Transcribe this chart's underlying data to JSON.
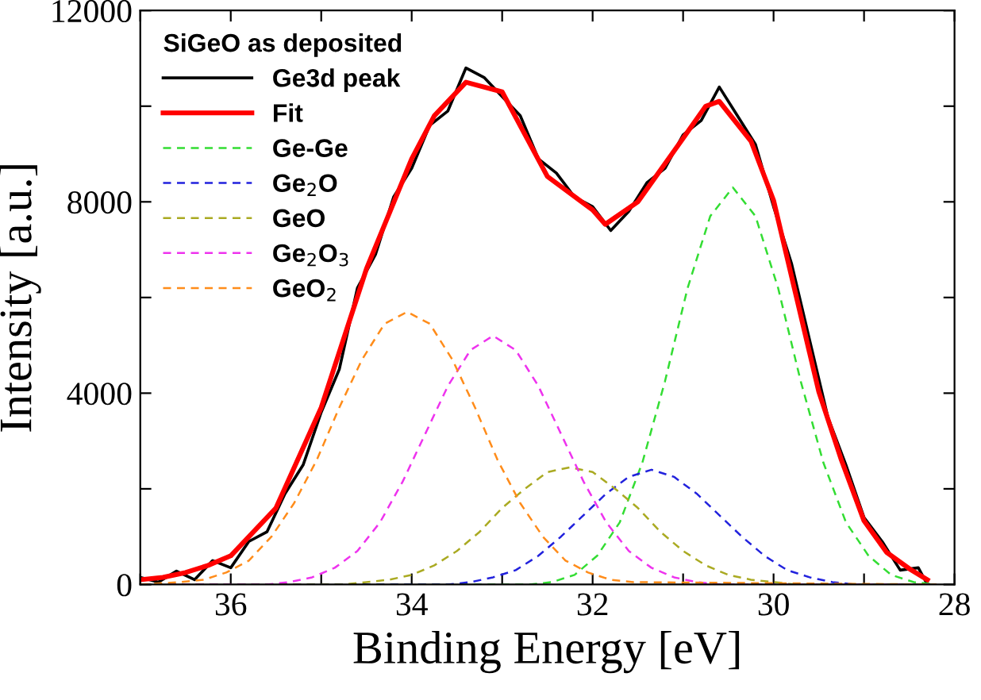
{
  "chart_data": {
    "type": "line",
    "xlabel": "Binding Energy [eV]",
    "ylabel": "Intensity [a.u.]",
    "legend_title": "SiGeO as deposited",
    "legend": "top left",
    "grid": false,
    "marker": "none",
    "xlim": [
      37,
      28
    ],
    "xticks": [
      {
        "value": 37,
        "label": null
      },
      36,
      {
        "value": 35,
        "label": null
      },
      34,
      {
        "value": 33,
        "label": null
      },
      32,
      {
        "value": 31,
        "label": null
      },
      30,
      {
        "value": 29,
        "label": null
      },
      28
    ],
    "ylim": [
      0,
      12000
    ],
    "yticks": [
      0,
      {
        "value": 2000,
        "label": null
      },
      4000,
      {
        "value": 6000,
        "label": null
      },
      8000,
      {
        "value": 10000,
        "label": null
      },
      12000
    ],
    "series": [
      {
        "name": "Ge3d peak",
        "color": "#000000",
        "line_style": "solid",
        "x": [
          37.0,
          36.8,
          36.6,
          36.4,
          36.2,
          36.0,
          35.8,
          35.6,
          35.4,
          35.2,
          35.0,
          34.8,
          34.6,
          34.4,
          34.2,
          34.0,
          33.8,
          33.6,
          33.4,
          33.2,
          33.0,
          32.8,
          32.6,
          32.4,
          32.2,
          32.0,
          31.8,
          31.6,
          31.4,
          31.2,
          31.0,
          30.8,
          30.6,
          30.4,
          30.2,
          30.0,
          29.8,
          29.6,
          29.4,
          29.2,
          29.0,
          28.8,
          28.6,
          28.4,
          28.3
        ],
        "values": [
          150,
          50,
          280,
          100,
          500,
          350,
          900,
          1100,
          1900,
          2500,
          3600,
          4500,
          6200,
          6900,
          8100,
          8700,
          9600,
          9900,
          10800,
          10600,
          10200,
          9800,
          8900,
          8600,
          8100,
          7900,
          7400,
          7800,
          8400,
          8700,
          9400,
          9700,
          10400,
          9800,
          9200,
          7900,
          6700,
          5100,
          3500,
          2500,
          1400,
          900,
          300,
          350,
          0
        ]
      },
      {
        "name": "Fit",
        "color": "#ff0000",
        "line_style": "solid",
        "x": [
          37.0,
          36.75,
          36.5,
          36.25,
          36.0,
          35.5,
          35.0,
          34.5,
          34.0,
          33.75,
          33.4,
          33.0,
          32.5,
          32.0,
          31.86,
          31.5,
          31.0,
          30.75,
          30.6,
          30.25,
          30.0,
          29.75,
          29.5,
          29.25,
          29.0,
          28.75,
          28.5,
          28.3
        ],
        "values": [
          100,
          150,
          250,
          400,
          600,
          1600,
          3700,
          6600,
          8900,
          9800,
          10500,
          10300,
          8530,
          7830,
          7530,
          8000,
          9330,
          10000,
          10100,
          9270,
          8030,
          6030,
          4030,
          2600,
          1330,
          670,
          330,
          100
        ]
      },
      {
        "name": "Ge-Ge",
        "color": "#33dd33",
        "line_style": "dashed",
        "x": [
          37.0,
          32.95,
          32.7,
          32.45,
          32.2,
          31.95,
          31.7,
          31.45,
          31.2,
          30.95,
          30.7,
          30.45,
          30.2,
          29.95,
          29.7,
          29.45,
          29.2,
          28.95,
          28.7,
          28.45,
          28.2
        ],
        "values": [
          0,
          0,
          0,
          50,
          200,
          600,
          1300,
          2550,
          4250,
          6200,
          7700,
          8300,
          7700,
          6200,
          4250,
          2550,
          1300,
          600,
          200,
          50,
          0
        ]
      },
      {
        "name": "Ge$_{2}$O",
        "color": "#2222dd",
        "line_style": "dashed",
        "x": [
          37.0,
          33.85,
          33.6,
          33.35,
          33.1,
          32.85,
          32.6,
          32.35,
          32.1,
          31.85,
          31.6,
          31.35,
          31.1,
          30.85,
          30.6,
          30.35,
          30.1,
          29.85,
          29.6,
          29.35,
          29.1,
          28.85,
          28.2
        ],
        "values": [
          0,
          0,
          0,
          50,
          150,
          300,
          600,
          1000,
          1450,
          1900,
          2250,
          2400,
          2250,
          1900,
          1450,
          1000,
          600,
          300,
          150,
          50,
          0,
          0,
          0
        ]
      },
      {
        "name": "GeO",
        "color": "#aaaa22",
        "line_style": "dashed",
        "x": [
          37.0,
          34.75,
          34.5,
          34.25,
          34.0,
          33.75,
          33.5,
          33.25,
          33.0,
          32.75,
          32.5,
          32.25,
          32.0,
          31.75,
          31.5,
          31.25,
          31.0,
          30.75,
          30.5,
          30.25,
          30.0,
          29.75,
          28.2
        ],
        "values": [
          0,
          0,
          50,
          100,
          200,
          400,
          700,
          1100,
          1600,
          2000,
          2350,
          2450,
          2350,
          2000,
          1600,
          1100,
          700,
          400,
          200,
          100,
          50,
          0,
          0
        ]
      },
      {
        "name": "Ge$_{2}$O$_{3}$",
        "color": "#ee33ee",
        "line_style": "dashed",
        "x": [
          37.0,
          35.6,
          35.35,
          35.1,
          34.85,
          34.6,
          34.35,
          34.1,
          33.85,
          33.6,
          33.35,
          33.1,
          32.85,
          32.6,
          32.35,
          32.1,
          31.85,
          31.6,
          31.35,
          31.1,
          30.85,
          30.6,
          28.2
        ],
        "values": [
          0,
          0,
          50,
          150,
          350,
          700,
          1300,
          2150,
          3150,
          4150,
          4900,
          5200,
          4900,
          4150,
          3150,
          2150,
          1300,
          700,
          350,
          150,
          50,
          0,
          0
        ]
      },
      {
        "name": "GeO$_{2}$",
        "color": "#ff8c1a",
        "line_style": "dashed",
        "x": [
          37.0,
          36.55,
          36.3,
          36.05,
          35.8,
          35.55,
          35.3,
          35.05,
          34.8,
          34.55,
          34.3,
          34.05,
          33.8,
          33.55,
          33.3,
          33.05,
          32.8,
          32.55,
          32.3,
          32.05,
          31.8,
          31.55,
          28.2
        ],
        "values": [
          0,
          50,
          100,
          250,
          500,
          1000,
          1700,
          2600,
          3700,
          4700,
          5450,
          5700,
          5450,
          4700,
          3700,
          2600,
          1700,
          1000,
          500,
          250,
          100,
          50,
          0
        ]
      }
    ]
  }
}
